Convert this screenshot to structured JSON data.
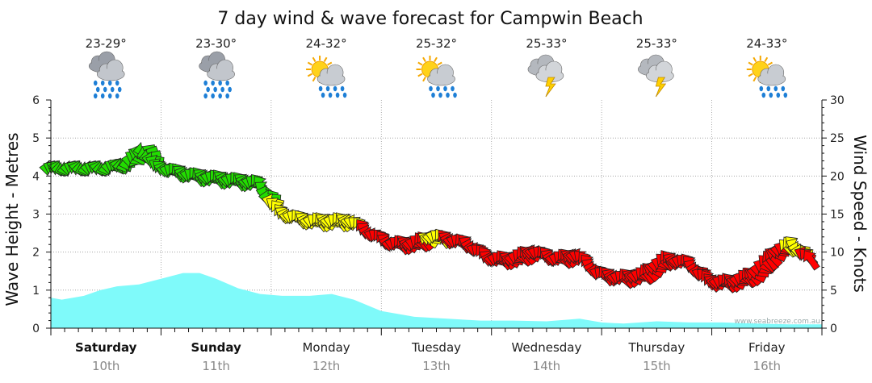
{
  "chart_data": {
    "type": "line",
    "title": "7 day wind & wave forecast for Campwin Beach",
    "ylabel_left": "Wave Height - Metres",
    "ylabel_right": "Wind Speed - Knots",
    "ylim_left": [
      0,
      6
    ],
    "ylim_right": [
      0,
      30
    ],
    "yticks_left": [
      "0",
      "1",
      "2",
      "3",
      "4",
      "5",
      "6"
    ],
    "yticks_right": [
      "0",
      "5",
      "10",
      "15",
      "20",
      "25",
      "30"
    ],
    "watermark": "www.seabreeze.com.au",
    "days": [
      {
        "name": "Saturday",
        "date": "10th",
        "temp": "23-29°",
        "icon": "heavy-rain-icon",
        "bold": true
      },
      {
        "name": "Sunday",
        "date": "11th",
        "temp": "23-30°",
        "icon": "heavy-rain-icon",
        "bold": true
      },
      {
        "name": "Monday",
        "date": "12th",
        "temp": "24-32°",
        "icon": "sun-rain-icon",
        "bold": false
      },
      {
        "name": "Tuesday",
        "date": "13th",
        "temp": "25-32°",
        "icon": "sun-rain-icon",
        "bold": false
      },
      {
        "name": "Wednesday",
        "date": "14th",
        "temp": "25-33°",
        "icon": "storm-icon",
        "bold": false
      },
      {
        "name": "Thursday",
        "date": "15th",
        "temp": "25-33°",
        "icon": "storm-icon",
        "bold": false
      },
      {
        "name": "Friday",
        "date": "16th",
        "temp": "24-33°",
        "icon": "sun-rain-icon",
        "bold": false
      }
    ],
    "wave_height_m": {
      "day_offsets": [
        0,
        0.1,
        0.2,
        0.3,
        0.45,
        0.6,
        0.8,
        1.0,
        1.2,
        1.35,
        1.5,
        1.7,
        1.9,
        2.1,
        2.35,
        2.55,
        2.75,
        3.0,
        3.3,
        3.6,
        3.9,
        4.2,
        4.5,
        4.8,
        5.0,
        5.2,
        5.5,
        5.8,
        6.1,
        6.4,
        6.7,
        7.0
      ],
      "values": [
        0.8,
        0.75,
        0.8,
        0.85,
        1.0,
        1.1,
        1.15,
        1.3,
        1.45,
        1.45,
        1.3,
        1.05,
        0.9,
        0.85,
        0.85,
        0.9,
        0.75,
        0.45,
        0.3,
        0.25,
        0.2,
        0.2,
        0.18,
        0.25,
        0.15,
        0.12,
        0.18,
        0.15,
        0.15,
        0.12,
        0.1,
        0.1
      ]
    },
    "wind_speed_knots": {
      "day_offsets": [
        0,
        0.25,
        0.5,
        0.7,
        0.85,
        1.0,
        1.3,
        1.6,
        1.9,
        2.1,
        2.35,
        2.55,
        2.75,
        2.9,
        3.1,
        3.3,
        3.5,
        3.65,
        3.8,
        4.0,
        4.2,
        4.4,
        4.6,
        4.8,
        5.0,
        5.2,
        5.4,
        5.6,
        5.8,
        6.0,
        6.2,
        6.4,
        6.6,
        6.75,
        6.9
      ],
      "values": [
        21,
        21,
        21,
        21.5,
        23.5,
        21,
        20,
        19.5,
        19,
        15,
        14,
        14,
        14,
        12.5,
        11,
        11,
        12,
        11.5,
        11,
        9,
        9,
        10,
        9,
        9.5,
        7,
        6.5,
        7,
        9,
        8.5,
        6,
        6,
        7,
        10,
        11,
        9
      ],
      "arrow_colors": [
        "green",
        "green",
        "green",
        "green",
        "green",
        "green",
        "green",
        "green",
        "green",
        "yellow",
        "yellow",
        "yellow",
        "yellow",
        "red",
        "red",
        "red",
        "yellow",
        "red",
        "red",
        "red",
        "red",
        "red",
        "red",
        "red",
        "red",
        "red",
        "red",
        "red",
        "red",
        "red",
        "red",
        "red",
        "red",
        "yellow",
        "red"
      ]
    },
    "colors": {
      "wave_fill": "#7ffafa",
      "wind_green": "#22dd00",
      "wind_yellow": "#ffff00",
      "wind_red": "#ff0000",
      "grid": "#999999"
    }
  }
}
